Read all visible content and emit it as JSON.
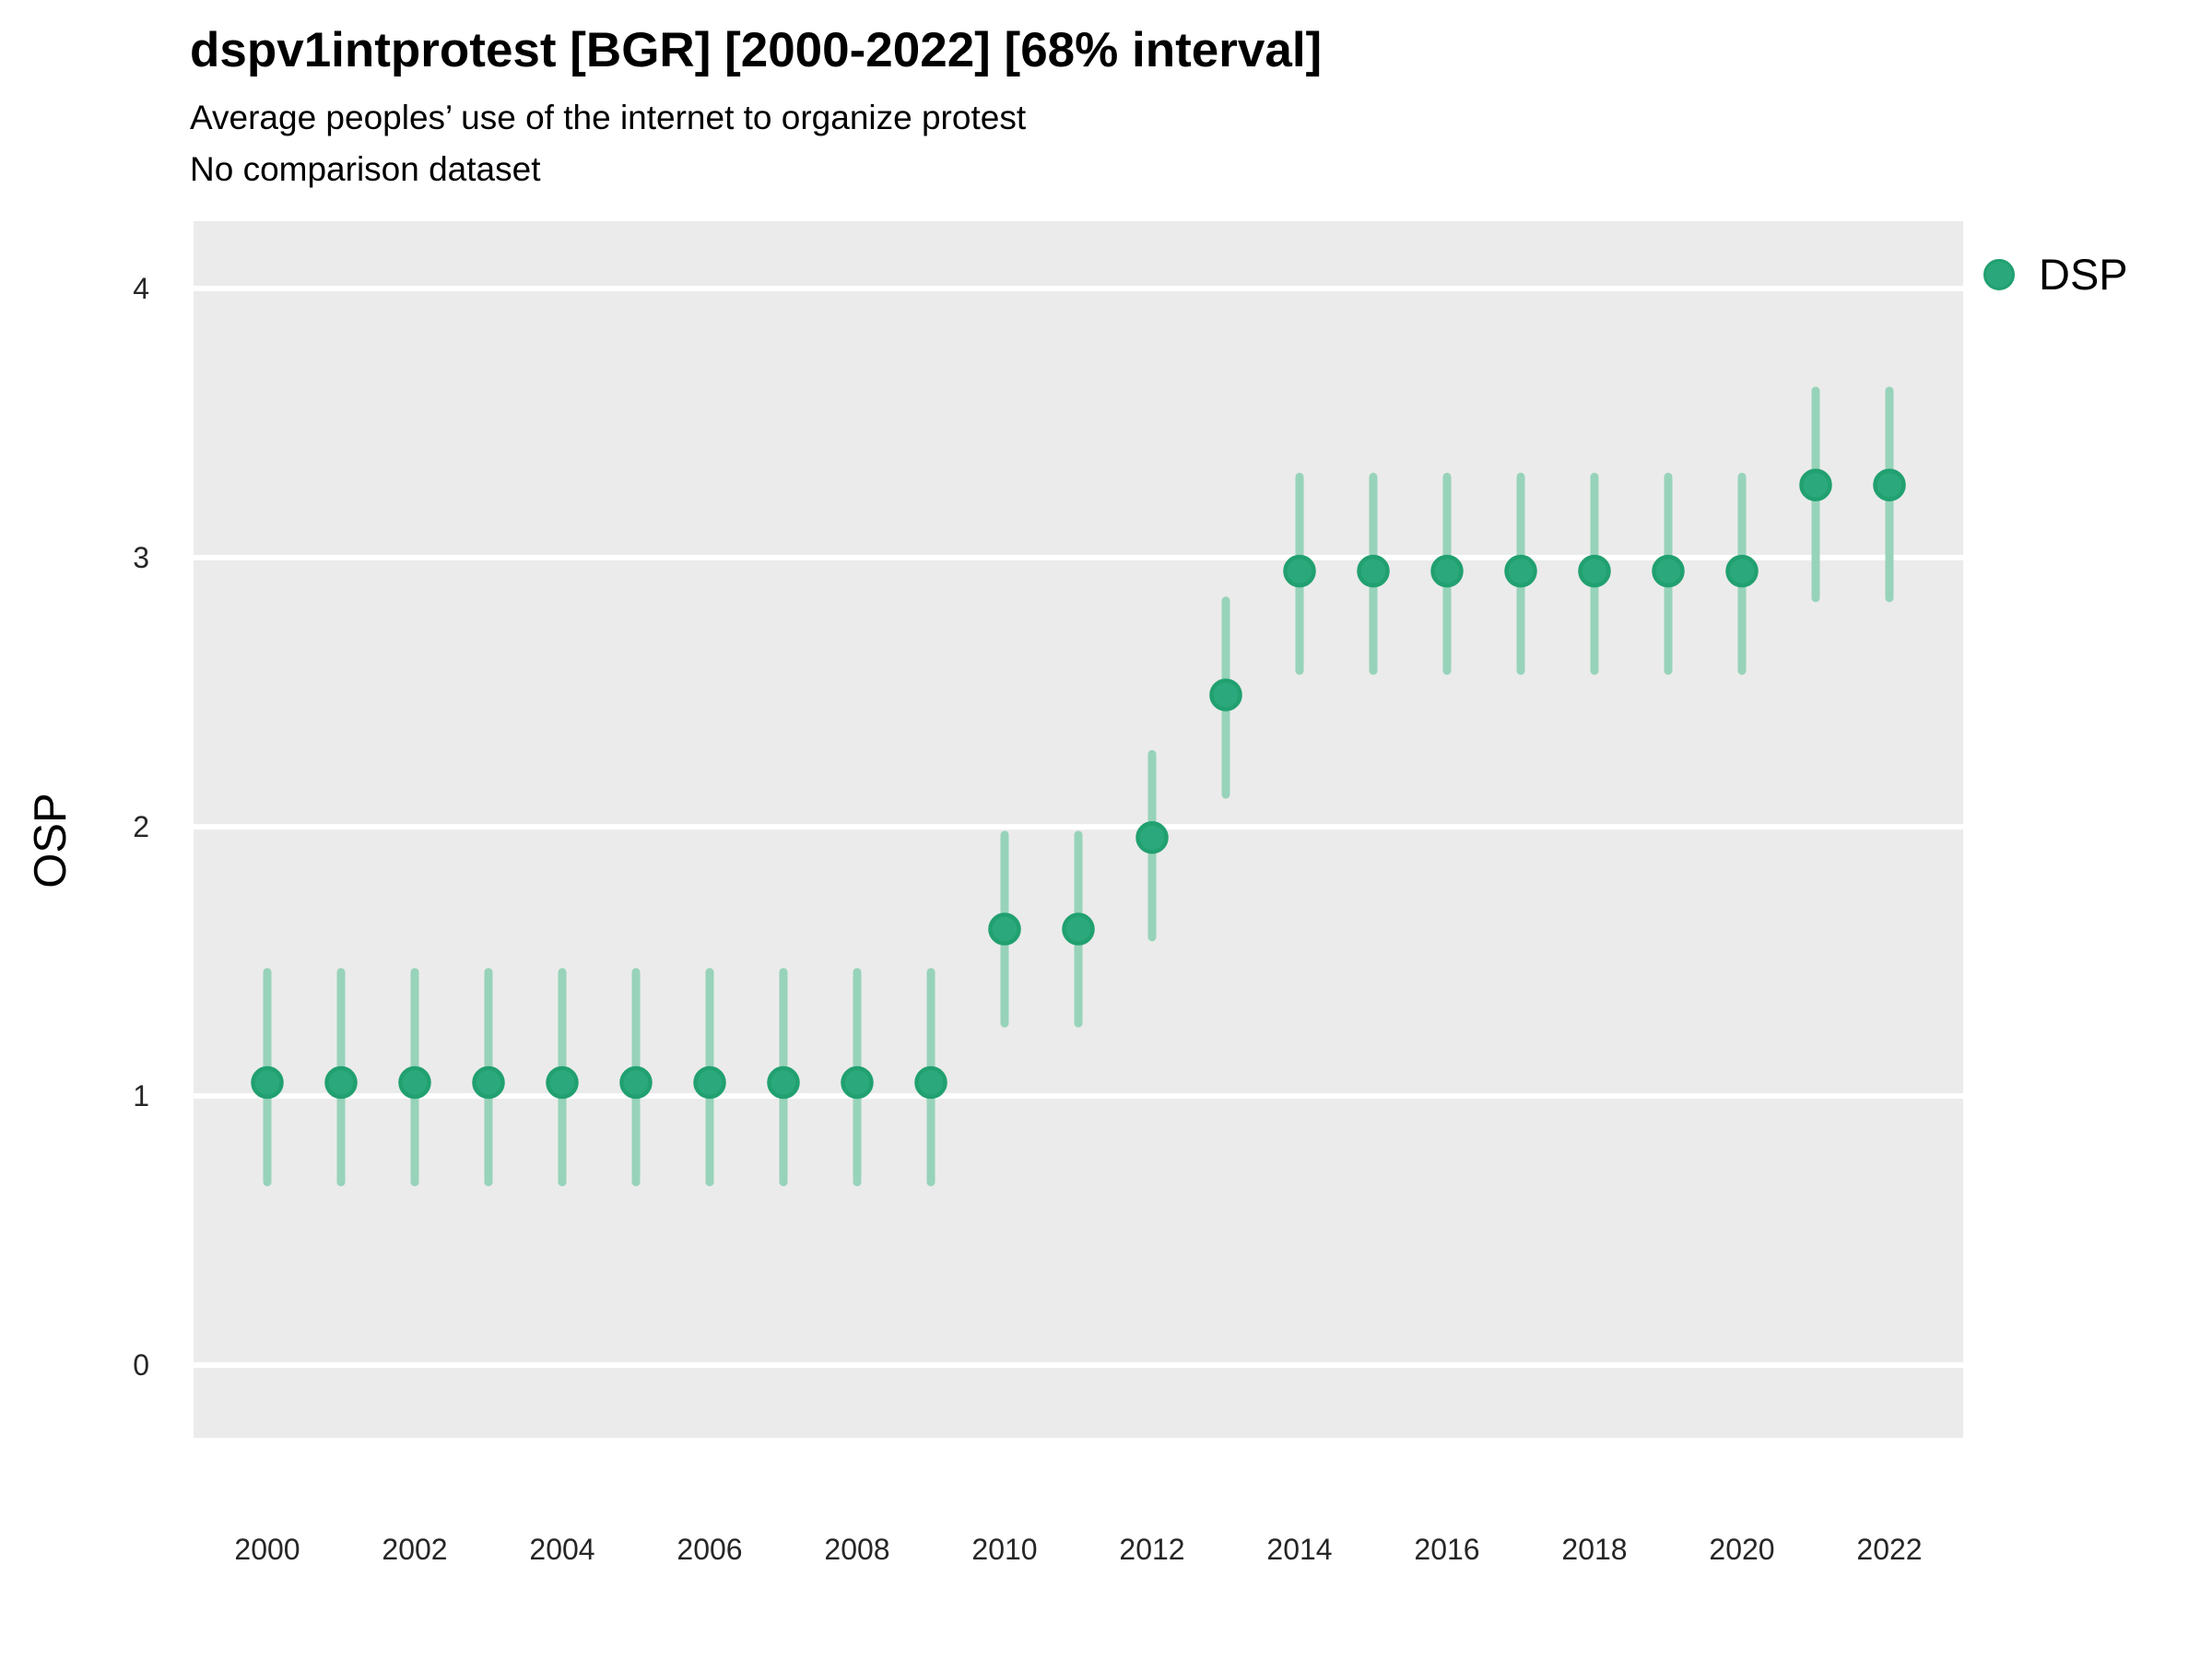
{
  "header": {
    "title": "dspv1intprotest [BGR] [2000-2022] [68% interval]",
    "subtitle": "Average peoples’ use of the internet to organize protest",
    "note": "No comparison dataset"
  },
  "legend": {
    "position": "right",
    "items": [
      {
        "label": "DSP",
        "color": "#2aa87c"
      }
    ]
  },
  "colors": {
    "point_fill": "#2ba97d",
    "point_stroke": "#21a070",
    "interval_bar": "#97d3ba",
    "panel_background": "#ebebeb",
    "gridline": "#ffffff",
    "tick_text": "#262626"
  },
  "chart_data": {
    "type": "scatter",
    "title": "dspv1intprotest [BGR] [2000-2022] [68% interval]",
    "subtitle": "Average peoples’ use of the internet to organize protest",
    "note": "No comparison dataset",
    "xlabel": "",
    "ylabel": "OSP",
    "interval_level": "68%",
    "grid": "horizontal-major-only",
    "legend_position": "right",
    "x": [
      2000,
      2001,
      2002,
      2003,
      2004,
      2005,
      2006,
      2007,
      2008,
      2009,
      2010,
      2011,
      2012,
      2013,
      2014,
      2015,
      2016,
      2017,
      2018,
      2019,
      2020,
      2021,
      2022
    ],
    "series": [
      {
        "name": "DSP",
        "values": [
          1.05,
          1.05,
          1.05,
          1.05,
          1.05,
          1.05,
          1.05,
          1.05,
          1.05,
          1.05,
          1.62,
          1.62,
          1.96,
          2.49,
          2.95,
          2.95,
          2.95,
          2.95,
          2.95,
          2.95,
          2.95,
          3.27,
          3.27
        ],
        "interval_low": [
          0.68,
          0.68,
          0.68,
          0.68,
          0.68,
          0.68,
          0.68,
          0.68,
          0.68,
          0.68,
          1.27,
          1.27,
          1.59,
          2.12,
          2.58,
          2.58,
          2.58,
          2.58,
          2.58,
          2.58,
          2.58,
          2.85,
          2.85
        ],
        "interval_high": [
          1.46,
          1.46,
          1.46,
          1.46,
          1.46,
          1.46,
          1.46,
          1.46,
          1.46,
          1.46,
          1.97,
          1.97,
          2.27,
          2.84,
          3.3,
          3.3,
          3.3,
          3.3,
          3.3,
          3.3,
          3.3,
          3.62,
          3.62
        ]
      }
    ],
    "xticks": [
      2000,
      2002,
      2004,
      2006,
      2008,
      2010,
      2012,
      2014,
      2016,
      2018,
      2020,
      2022
    ],
    "yticks": [
      0,
      1,
      2,
      3,
      4
    ],
    "xlim": [
      1999,
      2023
    ],
    "ylim": [
      -0.27,
      4.25
    ]
  }
}
